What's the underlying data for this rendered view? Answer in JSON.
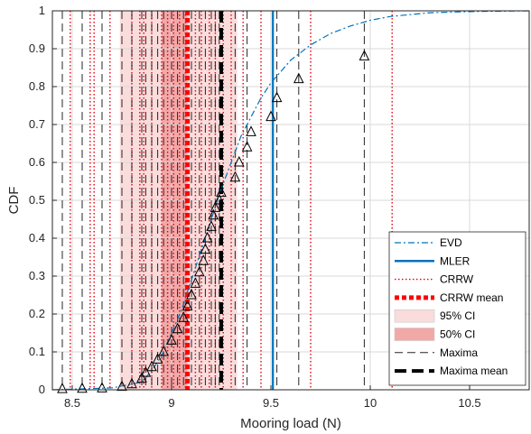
{
  "chart_data": {
    "type": "line",
    "xlabel": "Mooring load (N)",
    "ylabel": "CDF",
    "xlim": [
      8.4,
      10.8
    ],
    "ylim": [
      0,
      1
    ],
    "xticks": [
      "8.5",
      "9",
      "9.5",
      "10",
      "10.5"
    ],
    "yticks": [
      "0",
      "0.1",
      "0.2",
      "0.3",
      "0.4",
      "0.5",
      "0.6",
      "0.7",
      "0.8",
      "0.9",
      "1"
    ],
    "grid": true,
    "legend_position": "bottom-right",
    "legend": [
      "EVD",
      "MLER",
      "CRRW",
      "CRRW mean",
      "95% CI",
      "50% CI",
      "Maxima",
      "Maxima mean"
    ],
    "series": [
      {
        "name": "EVD",
        "style": "dash-dot",
        "color": "#0072BD",
        "x": [
          8.4,
          8.7,
          8.85,
          8.9,
          8.95,
          9.0,
          9.05,
          9.1,
          9.15,
          9.2,
          9.25,
          9.3,
          9.35,
          9.4,
          9.45,
          9.5,
          9.55,
          9.6,
          9.7,
          9.8,
          9.9,
          10.0,
          10.1,
          10.2,
          10.3,
          10.5,
          10.8
        ],
        "y": [
          0.0,
          0.005,
          0.02,
          0.05,
          0.09,
          0.15,
          0.21,
          0.29,
          0.37,
          0.45,
          0.53,
          0.6,
          0.67,
          0.72,
          0.77,
          0.81,
          0.84,
          0.87,
          0.91,
          0.94,
          0.96,
          0.975,
          0.985,
          0.99,
          0.995,
          0.998,
          1.0
        ]
      },
      {
        "name": "Maxima",
        "style": "triangle-markers",
        "color": "#000000",
        "x": [
          8.45,
          8.55,
          8.65,
          8.75,
          8.8,
          8.85,
          8.87,
          8.9,
          8.93,
          8.96,
          9.0,
          9.03,
          9.06,
          9.08,
          9.1,
          9.12,
          9.14,
          9.16,
          9.17,
          9.18,
          9.2,
          9.21,
          9.22,
          9.24,
          9.25,
          9.32,
          9.34,
          9.38,
          9.4,
          9.5,
          9.53,
          9.64,
          9.97
        ],
        "y": [
          0.002,
          0.003,
          0.004,
          0.008,
          0.015,
          0.03,
          0.045,
          0.06,
          0.08,
          0.1,
          0.13,
          0.16,
          0.19,
          0.22,
          0.25,
          0.28,
          0.31,
          0.34,
          0.37,
          0.4,
          0.43,
          0.46,
          0.48,
          0.5,
          0.52,
          0.56,
          0.6,
          0.64,
          0.68,
          0.72,
          0.77,
          0.82,
          0.88
        ]
      }
    ],
    "mler": 9.51,
    "crrw_mean": 9.08,
    "maxima_mean": 9.25,
    "ci95": [
      8.74,
      9.33
    ],
    "ci50": [
      8.95,
      9.08
    ],
    "crrw_lines": [
      8.49,
      8.59,
      8.61,
      8.69,
      8.8,
      8.84,
      8.86,
      8.9,
      8.95,
      8.98,
      9.01,
      9.04,
      9.07,
      9.12,
      9.15,
      9.19,
      9.22,
      9.26,
      9.3,
      9.36,
      9.45,
      9.7,
      10.11
    ],
    "maxima_lines": [
      8.45,
      8.55,
      8.65,
      8.75,
      8.8,
      8.85,
      8.87,
      8.9,
      8.93,
      8.96,
      9.0,
      9.03,
      9.06,
      9.1,
      9.14,
      9.17,
      9.2,
      9.22,
      9.24,
      9.32,
      9.38,
      9.53,
      9.64,
      9.97
    ]
  }
}
